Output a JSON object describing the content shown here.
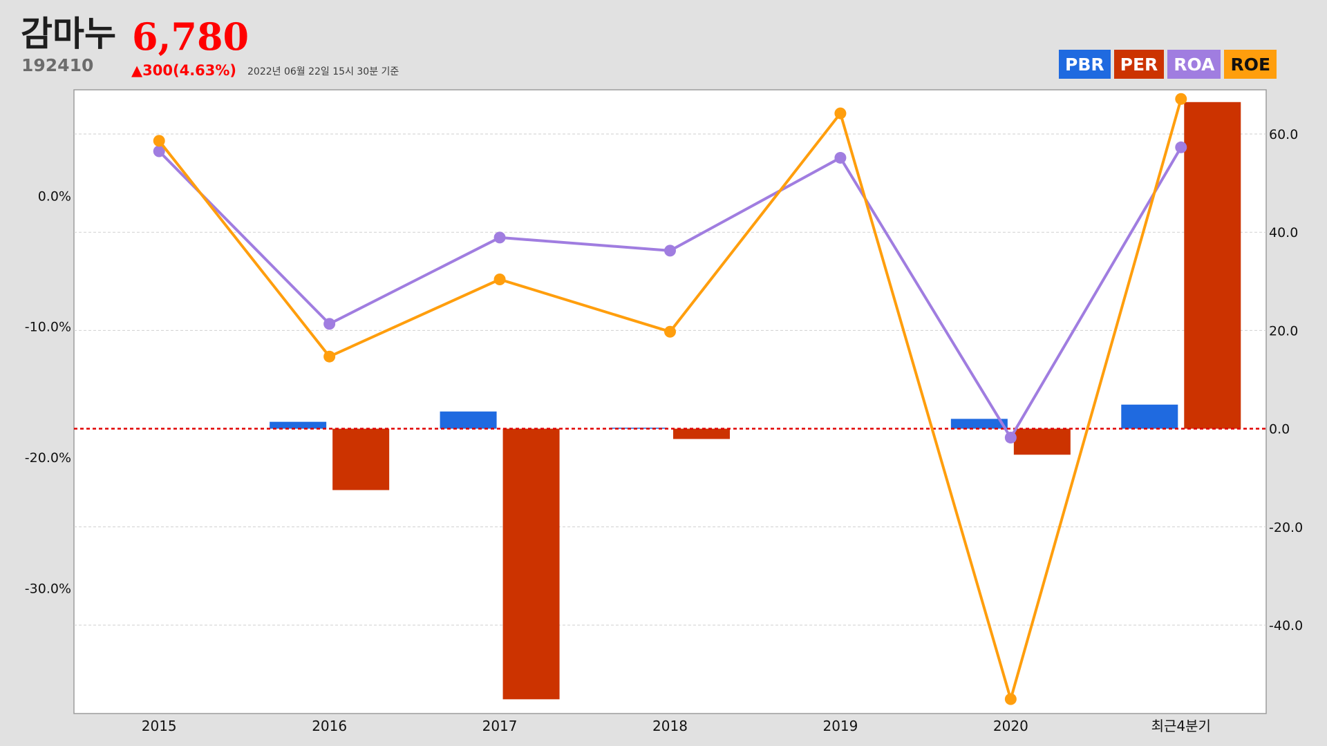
{
  "header": {
    "company_name": "감마누",
    "stock_code": "192410",
    "price": "6,780",
    "change": "▲300(4.63%)",
    "timestamp": "2022년 06월 22일 15시 30분 기준"
  },
  "legend": [
    {
      "label": "PBR",
      "color": "#1f6ae0",
      "text_color": "#ffffff"
    },
    {
      "label": "PER",
      "color": "#cc3300",
      "text_color": "#ffffff"
    },
    {
      "label": "ROA",
      "color": "#a07de0",
      "text_color": "#ffffff"
    },
    {
      "label": "ROE",
      "color": "#ff9e0d",
      "text_color": "#111111"
    }
  ],
  "chart_data": {
    "type": "bar+line",
    "categories": [
      "2015",
      "2016",
      "2017",
      "2018",
      "2019",
      "2020",
      "최근4분기"
    ],
    "left_axis": {
      "ticks": [
        0,
        -10,
        -20,
        -30
      ],
      "tick_labels": [
        "0.0%",
        "-10.0%",
        "-20.0%",
        "-30.0%"
      ],
      "range": [
        -39.6,
        8.1
      ]
    },
    "right_axis": {
      "ticks": [
        60,
        40,
        20,
        0,
        -20,
        -40
      ],
      "tick_labels": [
        "60.0",
        "40.0",
        "20.0",
        "0.0",
        "-20.0",
        "-40.0"
      ],
      "range": [
        -58,
        69
      ]
    },
    "bar_series": [
      {
        "name": "PBR",
        "color": "#1f6ae0",
        "values": [
          null,
          1.4,
          3.5,
          0.2,
          null,
          2.0,
          4.9
        ]
      },
      {
        "name": "PER",
        "color": "#cc3300",
        "values": [
          null,
          -12.5,
          -55.1,
          -2.1,
          null,
          -5.3,
          66.5
        ]
      }
    ],
    "line_series": [
      {
        "name": "ROA",
        "color": "#a07de0",
        "values": [
          3.4,
          -9.8,
          -3.2,
          -4.2,
          2.9,
          -18.5,
          3.7
        ]
      },
      {
        "name": "ROE",
        "color": "#ff9e0d",
        "values": [
          4.2,
          -12.3,
          -6.4,
          -10.4,
          6.3,
          -38.5,
          7.4
        ]
      }
    ],
    "zero_line_color": "#e00000",
    "grid": true
  }
}
